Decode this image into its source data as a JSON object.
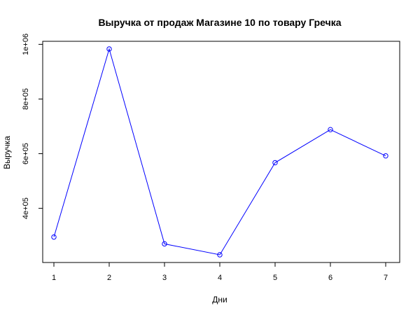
{
  "chart_data": {
    "type": "line",
    "title": "Выручка от продаж Магазине 10 по товару Гречка",
    "xlabel": "Дни",
    "ylabel": "Выручка",
    "x": [
      1,
      2,
      3,
      4,
      5,
      6,
      7
    ],
    "x_ticks": [
      "1",
      "2",
      "3",
      "4",
      "5",
      "6",
      "7"
    ],
    "series": [
      {
        "values": [
          295000,
          983000,
          270000,
          230000,
          567000,
          688000,
          592000
        ]
      }
    ],
    "y_ticks": [
      {
        "value": 400000,
        "label": "4e+05"
      },
      {
        "value": 600000,
        "label": "6e+05"
      },
      {
        "value": 800000,
        "label": "8e+05"
      },
      {
        "value": 1000000,
        "label": "1e+06"
      }
    ],
    "xlim": [
      1,
      7
    ],
    "ylim": [
      230000,
      983000
    ],
    "grid": false,
    "colors": {
      "line": "#0000ff",
      "points": "#0000ff",
      "axes": "#000000"
    }
  }
}
